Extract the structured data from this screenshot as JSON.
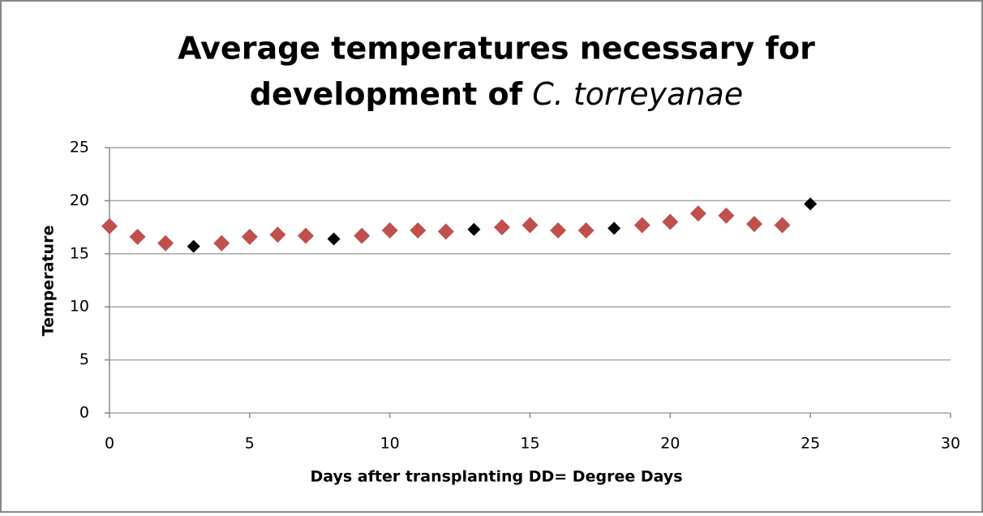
{
  "chart_data": {
    "type": "scatter",
    "title": [
      "Average temperatures necessary for",
      "development of",
      "C. torreyanae"
    ],
    "xlabel": "Days after transplanting DD= Degree Days",
    "ylabel": "Temperature",
    "xlim": [
      0,
      30
    ],
    "xticks": [
      0,
      5,
      10,
      15,
      20,
      25,
      30
    ],
    "ylim": [
      0,
      25
    ],
    "yticks": [
      0,
      5,
      10,
      15,
      20,
      25
    ],
    "grid": true,
    "series": [
      {
        "color": "#c0504d",
        "x": [
          0,
          1,
          2,
          4,
          5,
          6,
          7,
          9,
          10,
          11,
          12,
          14,
          15,
          16,
          17,
          19,
          20,
          21,
          22,
          23,
          24
        ],
        "values": [
          17.6,
          16.6,
          16.0,
          16.0,
          16.6,
          16.8,
          16.7,
          16.7,
          17.2,
          17.2,
          17.1,
          17.5,
          17.7,
          17.2,
          17.2,
          17.7,
          18.0,
          18.8,
          18.6,
          17.8,
          17.7
        ]
      },
      {
        "color": "#000000",
        "x": [
          3,
          8,
          13,
          18,
          25
        ],
        "values": [
          15.7,
          16.4,
          17.3,
          17.4,
          19.7
        ]
      }
    ]
  }
}
